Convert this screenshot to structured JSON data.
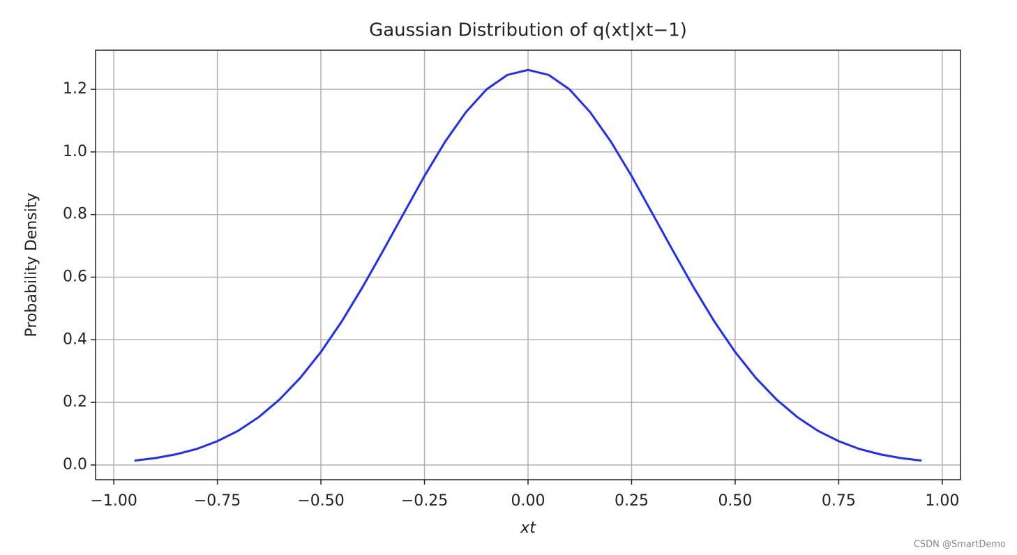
{
  "chart_data": {
    "type": "line",
    "title": "Gaussian Distribution of q(xt|xt−1)",
    "xlabel": "xt",
    "ylabel": "Probability Density",
    "watermark": "CSDN @SmartDemo",
    "x": [
      -0.95,
      -0.9,
      -0.85,
      -0.8,
      -0.75,
      -0.7,
      -0.65,
      -0.6,
      -0.55,
      -0.5,
      -0.45,
      -0.4,
      -0.35,
      -0.3,
      -0.25,
      -0.2,
      -0.15,
      -0.1,
      -0.05,
      0,
      0.05,
      0.1,
      0.15,
      0.2,
      0.25,
      0.3,
      0.35,
      0.4,
      0.45,
      0.5,
      0.55,
      0.6,
      0.65,
      0.7,
      0.75,
      0.8,
      0.85,
      0.9,
      0.95
    ],
    "series": [
      {
        "color": "#1f2ef5",
        "values": [
          0.014,
          0.022,
          0.034,
          0.051,
          0.076,
          0.109,
          0.153,
          0.209,
          0.278,
          0.361,
          0.458,
          0.567,
          0.684,
          0.804,
          0.923,
          1.033,
          1.127,
          1.2,
          1.246,
          1.262,
          1.246,
          1.2,
          1.127,
          1.033,
          0.923,
          0.804,
          0.684,
          0.567,
          0.458,
          0.361,
          0.278,
          0.209,
          0.153,
          0.109,
          0.076,
          0.051,
          0.034,
          0.022,
          0.014
        ]
      }
    ],
    "xlim": [
      -1.044,
      1.044
    ],
    "ylim": [
      -0.047,
      1.325
    ],
    "xticks": [
      {
        "value": -1,
        "label": "−1.00"
      },
      {
        "value": -0.75,
        "label": "−0.75"
      },
      {
        "value": -0.5,
        "label": "−0.50"
      },
      {
        "value": -0.25,
        "label": "−0.25"
      },
      {
        "value": 0,
        "label": "0.00"
      },
      {
        "value": 0.25,
        "label": "0.25"
      },
      {
        "value": 0.5,
        "label": "0.50"
      },
      {
        "value": 0.75,
        "label": "0.75"
      },
      {
        "value": 1,
        "label": "1.00"
      }
    ],
    "yticks": [
      {
        "value": 0,
        "label": "0.0"
      },
      {
        "value": 0.2,
        "label": "0.2"
      },
      {
        "value": 0.4,
        "label": "0.4"
      },
      {
        "value": 0.6,
        "label": "0.6"
      },
      {
        "value": 0.8,
        "label": "0.8"
      },
      {
        "value": 1,
        "label": "1.0"
      },
      {
        "value": 1.2,
        "label": "1.2"
      }
    ],
    "grid": true
  }
}
